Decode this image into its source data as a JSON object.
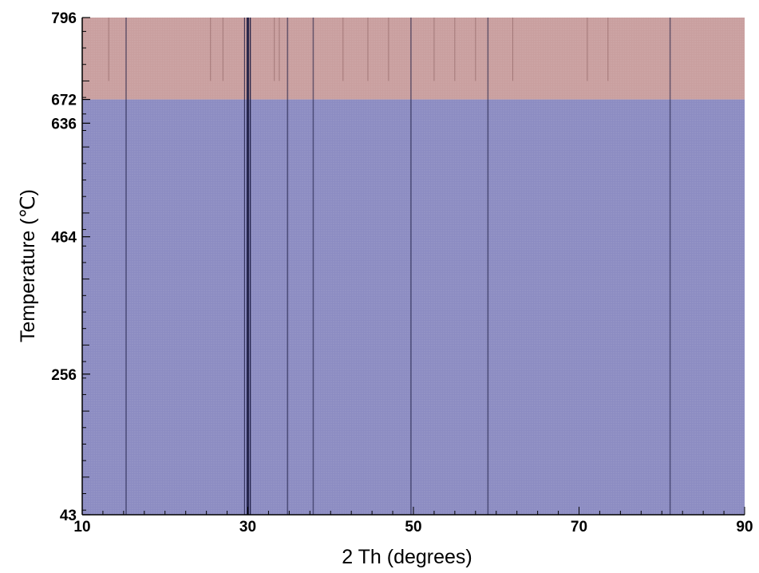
{
  "chart_data": {
    "type": "heatmap",
    "title": "",
    "xlabel": "2 Th (degrees)",
    "ylabel": "Temperature (℃)",
    "xlim": [
      10,
      90
    ],
    "ylim": [
      43,
      796
    ],
    "x_ticks": [
      10,
      30,
      50,
      70,
      90
    ],
    "y_ticks": [
      43,
      256,
      464,
      636,
      672,
      796
    ],
    "regions": [
      {
        "y_range": [
          43,
          672
        ],
        "color": "#8c8cc2"
      },
      {
        "y_range": [
          672,
          796
        ],
        "color": "#c99f9f"
      }
    ],
    "diffraction_lines_2theta": [
      15.3,
      29.6,
      30.0,
      30.3,
      34.8,
      37.9,
      49.7,
      59.0,
      81.0
    ],
    "high_temp_extra_lines_2theta": [
      13.2,
      25.5,
      27.0,
      33.2,
      33.8,
      41.5,
      44.5,
      47.0,
      52.5,
      55.0,
      57.5,
      62.0,
      71.0,
      73.5
    ]
  }
}
